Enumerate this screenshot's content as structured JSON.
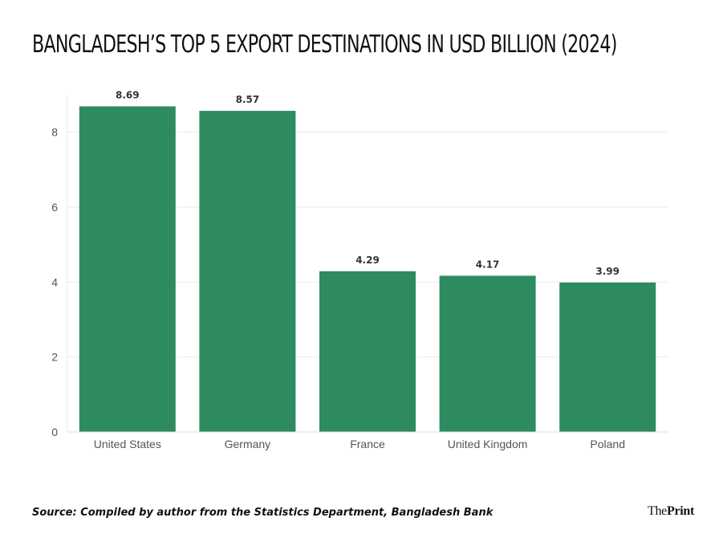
{
  "chart_data": {
    "type": "bar",
    "title": "BANGLADESH’S TOP 5 EXPORT DESTINATIONS IN USD BILLION  (2024)",
    "categories": [
      "United States",
      "Germany",
      "France",
      "United Kingdom",
      "Poland"
    ],
    "values": [
      8.69,
      8.57,
      4.29,
      4.17,
      3.99
    ],
    "data_labels": [
      "8.69",
      "8.57",
      "4.29",
      "4.17",
      "3.99"
    ],
    "yticks": [
      0,
      2,
      4,
      6,
      8
    ],
    "ylim": [
      0,
      9.0
    ],
    "xlabel": "",
    "ylabel": "",
    "grid": true,
    "bar_color": "#2e8b5f"
  },
  "footer": {
    "source": "Source: Compiled by author from the Statistics Department, Bangladesh Bank",
    "brand_prefix": "The",
    "brand_name": "Print"
  }
}
